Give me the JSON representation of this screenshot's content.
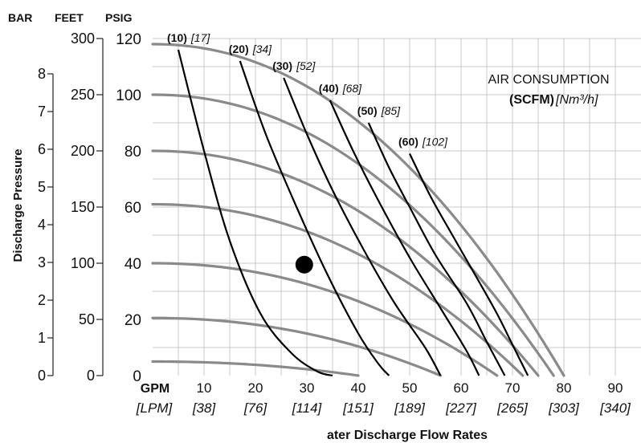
{
  "chart_data": {
    "type": "line",
    "title": "",
    "axis_headers": {
      "bar": "BAR",
      "feet": "FEET",
      "psig": "PSIG"
    },
    "ylabel": "Discharge Pressure",
    "xlabel": "ater Discharge Flow Rates",
    "x_unit_gpm": "GPM",
    "x_unit_lpm": "[LPM]",
    "xlim": [
      0,
      95
    ],
    "ylim": [
      0,
      120
    ],
    "x_ticks": [
      10,
      20,
      30,
      40,
      50,
      60,
      70,
      80,
      90
    ],
    "x_ticks_lpm": [
      "[38]",
      "[76]",
      "[114]",
      "[151]",
      "[189]",
      "[227]",
      "[265]",
      "[303]",
      "[340]"
    ],
    "psig_ticks": [
      0,
      20,
      40,
      60,
      80,
      100,
      120
    ],
    "feet_ticks": [
      0,
      50,
      100,
      150,
      200,
      250,
      300
    ],
    "bar_ticks": [
      0,
      1,
      2,
      3,
      4,
      5,
      6,
      7,
      8
    ],
    "grid": true,
    "legend_title_line1": "AIR CONSUMPTION",
    "legend_title_bold": "(SCFM)",
    "legend_title_italic": "[Nm³/h]",
    "pressure_curves": [
      {
        "p0": 118,
        "x_end": 80
      },
      {
        "p0": 100,
        "x_end": 78
      },
      {
        "p0": 80,
        "x_end": 75
      },
      {
        "p0": 61,
        "x_end": 72
      },
      {
        "p0": 40,
        "x_end": 67
      },
      {
        "p0": 20.5,
        "x_end": 56
      },
      {
        "p0": 5,
        "x_end": 40
      }
    ],
    "series": [
      {
        "scfm": "(10)",
        "nm3h": "[17]",
        "points": [
          [
            5,
            116
          ],
          [
            10,
            80
          ],
          [
            15,
            48
          ],
          [
            21,
            22
          ],
          [
            27,
            8
          ],
          [
            32,
            1.5
          ],
          [
            35,
            0
          ]
        ]
      },
      {
        "scfm": "(20)",
        "nm3h": "[34]",
        "points": [
          [
            17,
            112
          ],
          [
            22,
            86
          ],
          [
            28,
            60
          ],
          [
            34,
            36
          ],
          [
            40,
            15
          ],
          [
            44,
            4
          ],
          [
            46,
            0
          ]
        ]
      },
      {
        "scfm": "(30)",
        "nm3h": "[52]",
        "points": [
          [
            25.5,
            106
          ],
          [
            30,
            86
          ],
          [
            35,
            66
          ],
          [
            41,
            45
          ],
          [
            47,
            26
          ],
          [
            53,
            10
          ],
          [
            56,
            0
          ]
        ]
      },
      {
        "scfm": "(40)",
        "nm3h": "[68]",
        "points": [
          [
            34.5,
            98
          ],
          [
            39,
            80
          ],
          [
            44,
            62
          ],
          [
            50,
            42
          ],
          [
            56,
            24
          ],
          [
            61,
            9
          ],
          [
            63.5,
            0
          ]
        ]
      },
      {
        "scfm": "(50)",
        "nm3h": "[85]",
        "points": [
          [
            42,
            90
          ],
          [
            46,
            74
          ],
          [
            50,
            60
          ],
          [
            55,
            43
          ],
          [
            61,
            26
          ],
          [
            65,
            12
          ],
          [
            68.5,
            0
          ]
        ]
      },
      {
        "scfm": "(60)",
        "nm3h": "[102]",
        "points": [
          [
            50,
            79
          ],
          [
            54,
            64
          ],
          [
            58,
            51
          ],
          [
            63,
            35
          ],
          [
            67,
            22
          ],
          [
            70,
            11
          ],
          [
            73,
            0
          ]
        ]
      }
    ],
    "operating_point": {
      "x": 29.5,
      "y": 39.5
    }
  }
}
